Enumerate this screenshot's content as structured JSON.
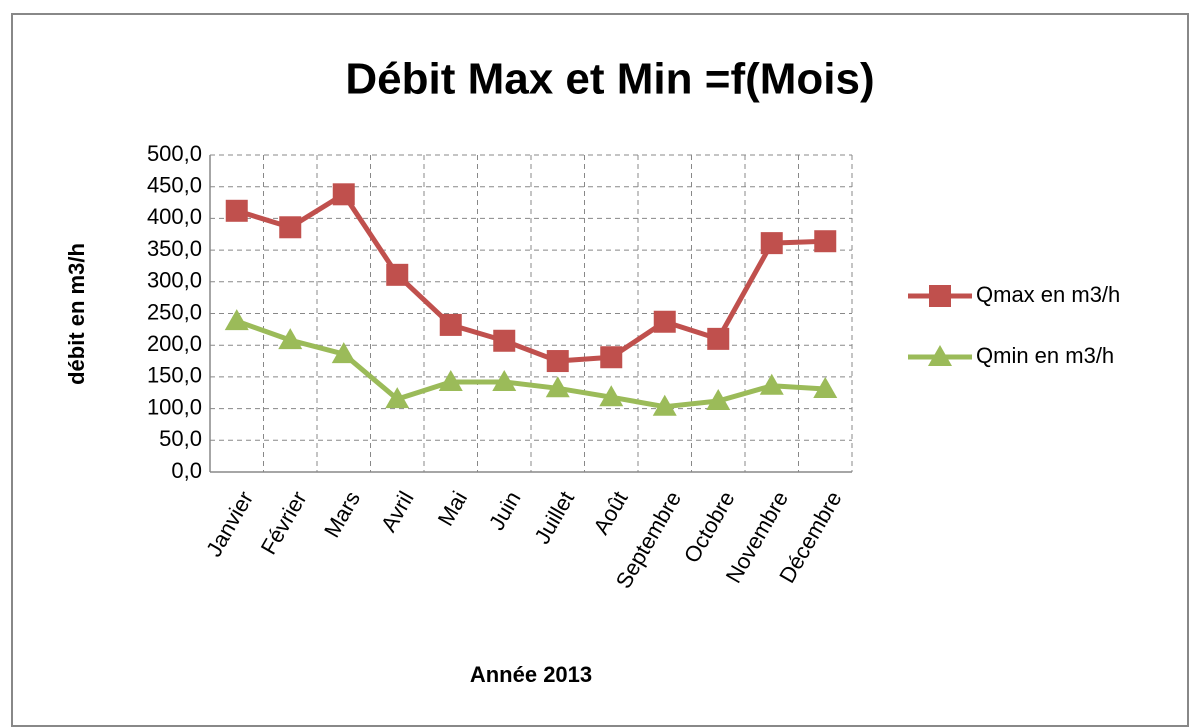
{
  "chart_data": {
    "type": "line",
    "title": "Débit Max et Min =f(Mois)",
    "x_label": "Année 2013",
    "y_label": "débit en m3/h",
    "categories": [
      "Janvier",
      "Février",
      "Mars",
      "Avril",
      "Mai",
      "Juin",
      "Juillet",
      "Août",
      "Septembre",
      "Octobre",
      "Novembre",
      "Décembre"
    ],
    "series": [
      {
        "name": "Qmax en m3/h",
        "color": "#c0504d",
        "marker": "square",
        "values": [
          412,
          386,
          438,
          311,
          232,
          207,
          175,
          181,
          237,
          210,
          361,
          364
        ]
      },
      {
        "name": "Qmin en m3/h",
        "color": "#9bbb59",
        "marker": "triangle",
        "values": [
          238,
          208,
          186,
          115,
          142,
          142,
          132,
          118,
          103,
          112,
          136,
          131
        ]
      }
    ],
    "ylim": [
      0,
      500
    ],
    "yticks": [
      {
        "value": 0,
        "label": "0,0"
      },
      {
        "value": 50,
        "label": "50,0"
      },
      {
        "value": 100,
        "label": "100,0"
      },
      {
        "value": 150,
        "label": "150,0"
      },
      {
        "value": 200,
        "label": "200,0"
      },
      {
        "value": 250,
        "label": "250,0"
      },
      {
        "value": 300,
        "label": "300,0"
      },
      {
        "value": 350,
        "label": "350,0"
      },
      {
        "value": 400,
        "label": "400,0"
      },
      {
        "value": 450,
        "label": "450,0"
      },
      {
        "value": 500,
        "label": "500,0"
      }
    ],
    "grid": true,
    "legend": "right"
  }
}
